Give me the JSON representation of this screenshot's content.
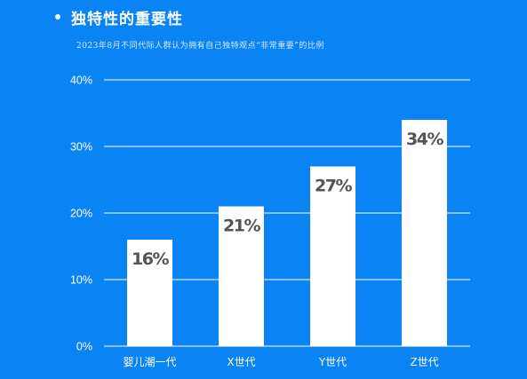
{
  "header": {
    "title": "独特性的重要性",
    "subtitle": "2023年8月不同代际人群认为拥有自己独特观点“非常重要”的比例"
  },
  "colors": {
    "background": "#0A84F5",
    "bar": "#FFFFFF",
    "gridline": "#FFFFFF",
    "data_label": "#545454"
  },
  "chart_data": {
    "type": "bar",
    "categories": [
      "婴儿潮一代",
      "X世代",
      "Y世代",
      "Z世代"
    ],
    "values": [
      16,
      21,
      27,
      34
    ],
    "value_labels": [
      "16%",
      "21%",
      "27%",
      "34%"
    ],
    "y_ticks": [
      0,
      10,
      20,
      30,
      40
    ],
    "y_tick_labels": [
      "0%",
      "10%",
      "20%",
      "30%",
      "40%"
    ],
    "ylim": [
      0,
      40
    ],
    "grid": true,
    "legend": "none",
    "data_label_position": "inside-top"
  }
}
